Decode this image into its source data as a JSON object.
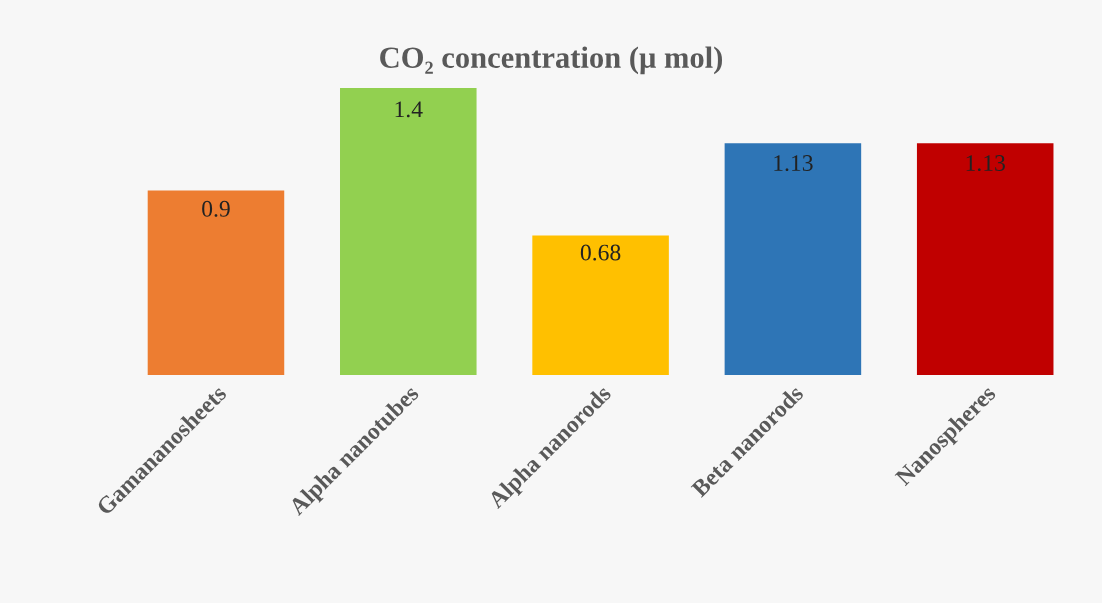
{
  "chart_data": {
    "type": "bar",
    "title": "CO₂ concentration (μ mol)",
    "categories": [
      "Gamananosheets",
      "Alpha nanotubes",
      "Alpha nanorods",
      "Beta nanorods",
      "Nanospheres"
    ],
    "values": [
      0.9,
      1.4,
      0.68,
      1.13,
      1.13
    ],
    "colors": [
      "#ed7d31",
      "#92d050",
      "#ffc000",
      "#2e75b6",
      "#c00000"
    ],
    "data_labels": true,
    "grid": false,
    "legend": false,
    "tick_labels": "x"
  }
}
